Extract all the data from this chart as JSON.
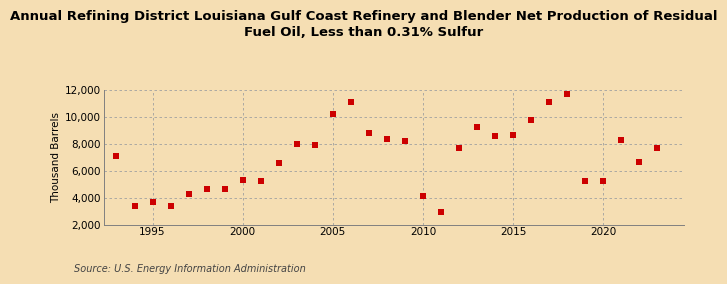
{
  "title": "Annual Refining District Louisiana Gulf Coast Refinery and Blender Net Production of Residual\nFuel Oil, Less than 0.31% Sulfur",
  "ylabel": "Thousand Barrels",
  "source": "Source: U.S. Energy Information Administration",
  "background_color": "#f5deb3",
  "plot_bg_color": "#f5deb3",
  "marker_color": "#cc0000",
  "years": [
    1993,
    1994,
    1995,
    1996,
    1997,
    1998,
    1999,
    2000,
    2001,
    2002,
    2003,
    2004,
    2005,
    2006,
    2007,
    2008,
    2009,
    2010,
    2011,
    2012,
    2013,
    2014,
    2015,
    2016,
    2017,
    2018,
    2019,
    2020,
    2021,
    2022,
    2023
  ],
  "values": [
    7100,
    3400,
    3700,
    3350,
    4300,
    4600,
    4600,
    5300,
    5200,
    6600,
    7950,
    7900,
    10200,
    11100,
    8800,
    8350,
    8200,
    4100,
    2950,
    7650,
    9200,
    8600,
    8650,
    9750,
    11100,
    11650,
    5200,
    5200,
    8250,
    6650,
    7650
  ],
  "ylim": [
    2000,
    12000
  ],
  "yticks": [
    2000,
    4000,
    6000,
    8000,
    10000,
    12000
  ],
  "xlim": [
    1992.3,
    2024.5
  ],
  "xticks": [
    1995,
    2000,
    2005,
    2010,
    2015,
    2020
  ],
  "title_fontsize": 9.5,
  "axis_fontsize": 7.5,
  "source_fontsize": 7.0
}
